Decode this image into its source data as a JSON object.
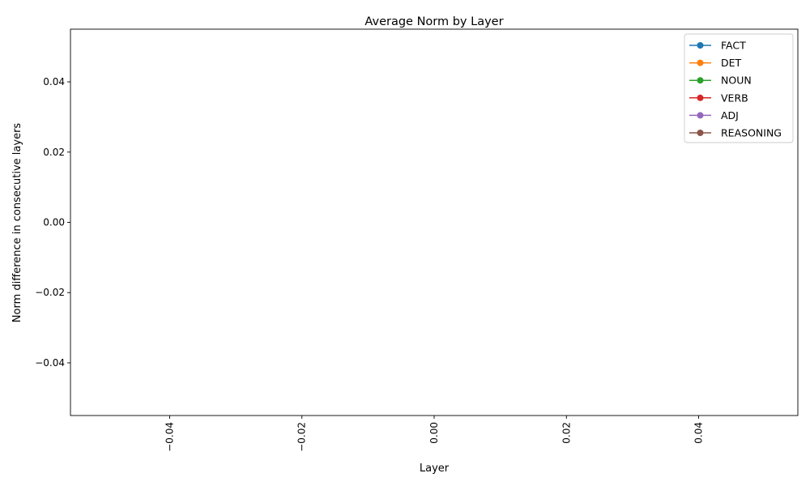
{
  "chart_data": {
    "type": "line",
    "title": "Average Norm by Layer",
    "xlabel": "Layer",
    "ylabel": "Norm difference in consecutive layers",
    "xlim": [
      -0.055,
      0.055
    ],
    "ylim": [
      -0.055,
      0.055
    ],
    "xticks": [
      -0.04,
      -0.02,
      0.0,
      0.02,
      0.04
    ],
    "xtick_labels": [
      "−0.04",
      "−0.02",
      "0.00",
      "0.02",
      "0.04"
    ],
    "xtick_rotation": 90,
    "yticks": [
      -0.04,
      -0.02,
      0.0,
      0.02,
      0.04
    ],
    "ytick_labels": [
      "−0.04",
      "−0.02",
      "0.00",
      "0.02",
      "0.04"
    ],
    "grid": false,
    "legend_position": "top-right",
    "series": [
      {
        "name": "FACT",
        "color": "#1f77b4",
        "marker": "circle",
        "x": [],
        "y": []
      },
      {
        "name": "DET",
        "color": "#ff7f0e",
        "marker": "circle",
        "x": [],
        "y": []
      },
      {
        "name": "NOUN",
        "color": "#2ca02c",
        "marker": "circle",
        "x": [],
        "y": []
      },
      {
        "name": "VERB",
        "color": "#d62728",
        "marker": "circle",
        "x": [],
        "y": []
      },
      {
        "name": "ADJ",
        "color": "#9467bd",
        "marker": "circle",
        "x": [],
        "y": []
      },
      {
        "name": "REASONING",
        "color": "#8c564b",
        "marker": "circle",
        "x": [],
        "y": []
      }
    ]
  }
}
